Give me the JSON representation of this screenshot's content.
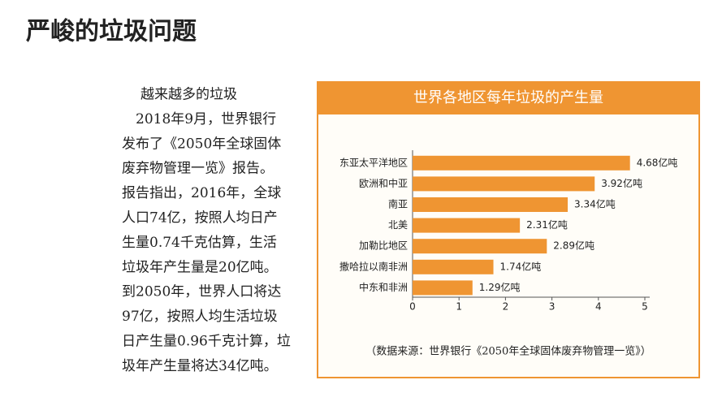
{
  "slide_title": "严峻的垃圾问题",
  "text_lines": [
    "越来越多的垃圾",
    "2018年9月，世界银行",
    "发布了《2050年全球固体",
    "废弃物管理一览》报告。",
    "报告指出，2016年，全球",
    "人口74亿，按照人均日产",
    "生量0.74千克估算，生活",
    "垃圾年产生量是20亿吨。",
    "到2050年，世界人口将达",
    "97亿，按照人均生活垃圾",
    "日产生量0.96千克计算，垃",
    "圾年产生量将达34亿吨。"
  ],
  "chart_data": {
    "type": "bar",
    "orientation": "horizontal",
    "title": "世界各地区每年垃圾的产生量",
    "categories": [
      "东亚太平洋地区",
      "欧洲和中亚",
      "南亚",
      "北美",
      "加勒比地区",
      "撒哈拉以南非洲",
      "中东和非洲"
    ],
    "values": [
      4.68,
      3.92,
      3.34,
      2.31,
      2.89,
      1.74,
      1.29
    ],
    "value_labels": [
      "4.68亿吨",
      "3.92亿吨",
      "3.34亿吨",
      "2.31亿吨",
      "2.89亿吨",
      "1.74亿吨",
      "1.29亿吨"
    ],
    "color": "#ef9532",
    "xlim": [
      0,
      5
    ],
    "xticks": [
      0,
      1,
      2,
      3,
      4,
      5
    ],
    "source": "（数据来源：世界银行《2050年全球固体废弃物管理一览》）"
  }
}
